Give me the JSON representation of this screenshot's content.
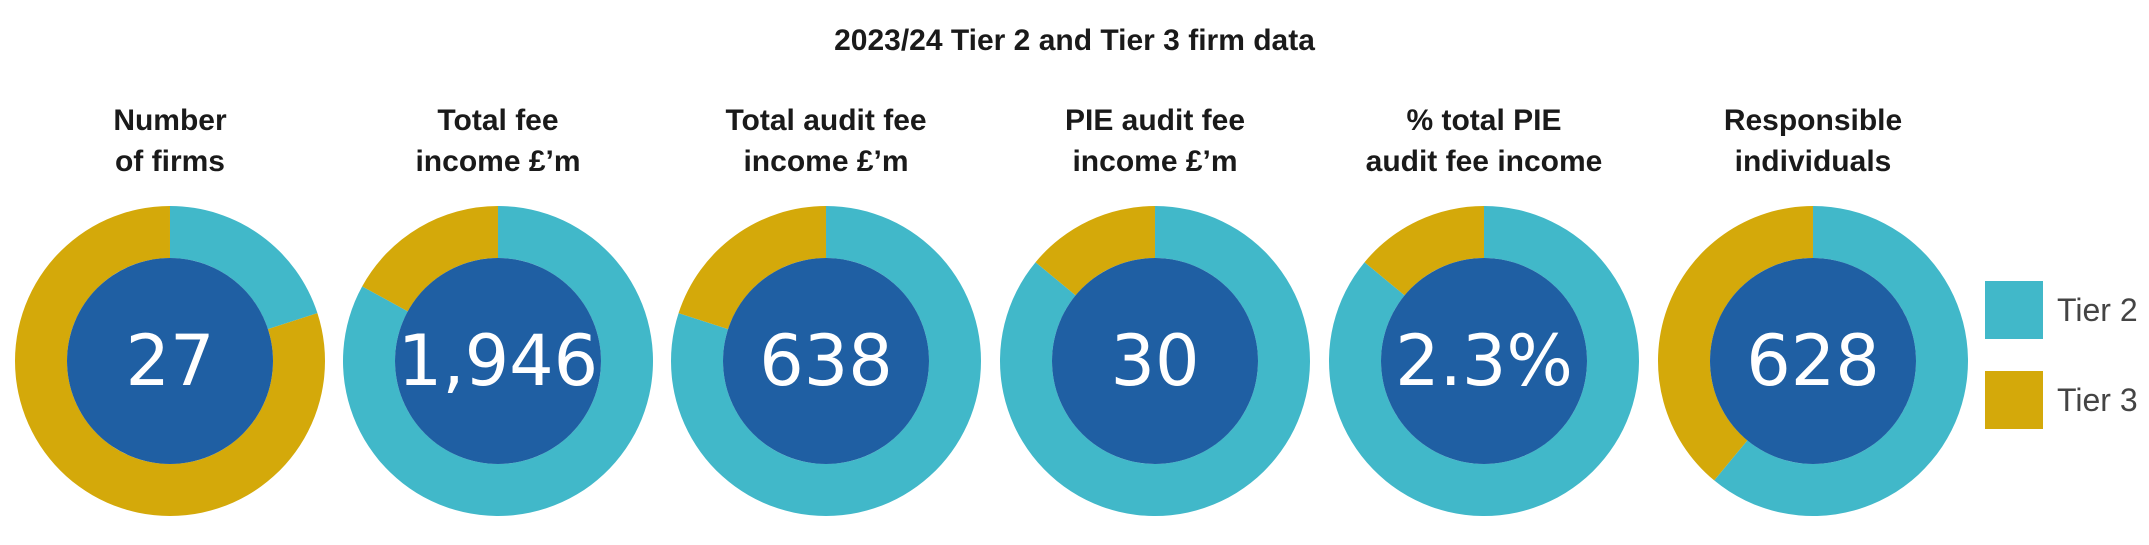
{
  "colors": {
    "tier2": "#41b8c9",
    "tier3": "#d4a90a",
    "center": "#1f5fa3"
  },
  "chart_data": {
    "type": "pie",
    "title": "2023/24 Tier 2 and Tier 3 firm data",
    "legend": {
      "placement": "right",
      "entries": [
        {
          "name": "Tier 2",
          "color": "#41b8c9"
        },
        {
          "name": "Tier 3",
          "color": "#d4a90a"
        }
      ]
    },
    "charts": [
      {
        "label": "Number\nof firms",
        "center_value": "27",
        "tier2_share": 0.2,
        "tier3_share": 0.8
      },
      {
        "label": "Total fee\nincome £’m",
        "center_value": "1,946",
        "tier2_share": 0.83,
        "tier3_share": 0.17
      },
      {
        "label": "Total audit fee\nincome £’m",
        "center_value": "638",
        "tier2_share": 0.8,
        "tier3_share": 0.2
      },
      {
        "label": "PIE audit fee\nincome £’m",
        "center_value": "30",
        "tier2_share": 0.86,
        "tier3_share": 0.14
      },
      {
        "label": "% total PIE\naudit fee income",
        "center_value": "2.3%",
        "tier2_share": 0.86,
        "tier3_share": 0.14
      },
      {
        "label": "Responsible\nindividuals",
        "center_value": "628",
        "tier2_share": 0.61,
        "tier3_share": 0.39
      }
    ]
  }
}
